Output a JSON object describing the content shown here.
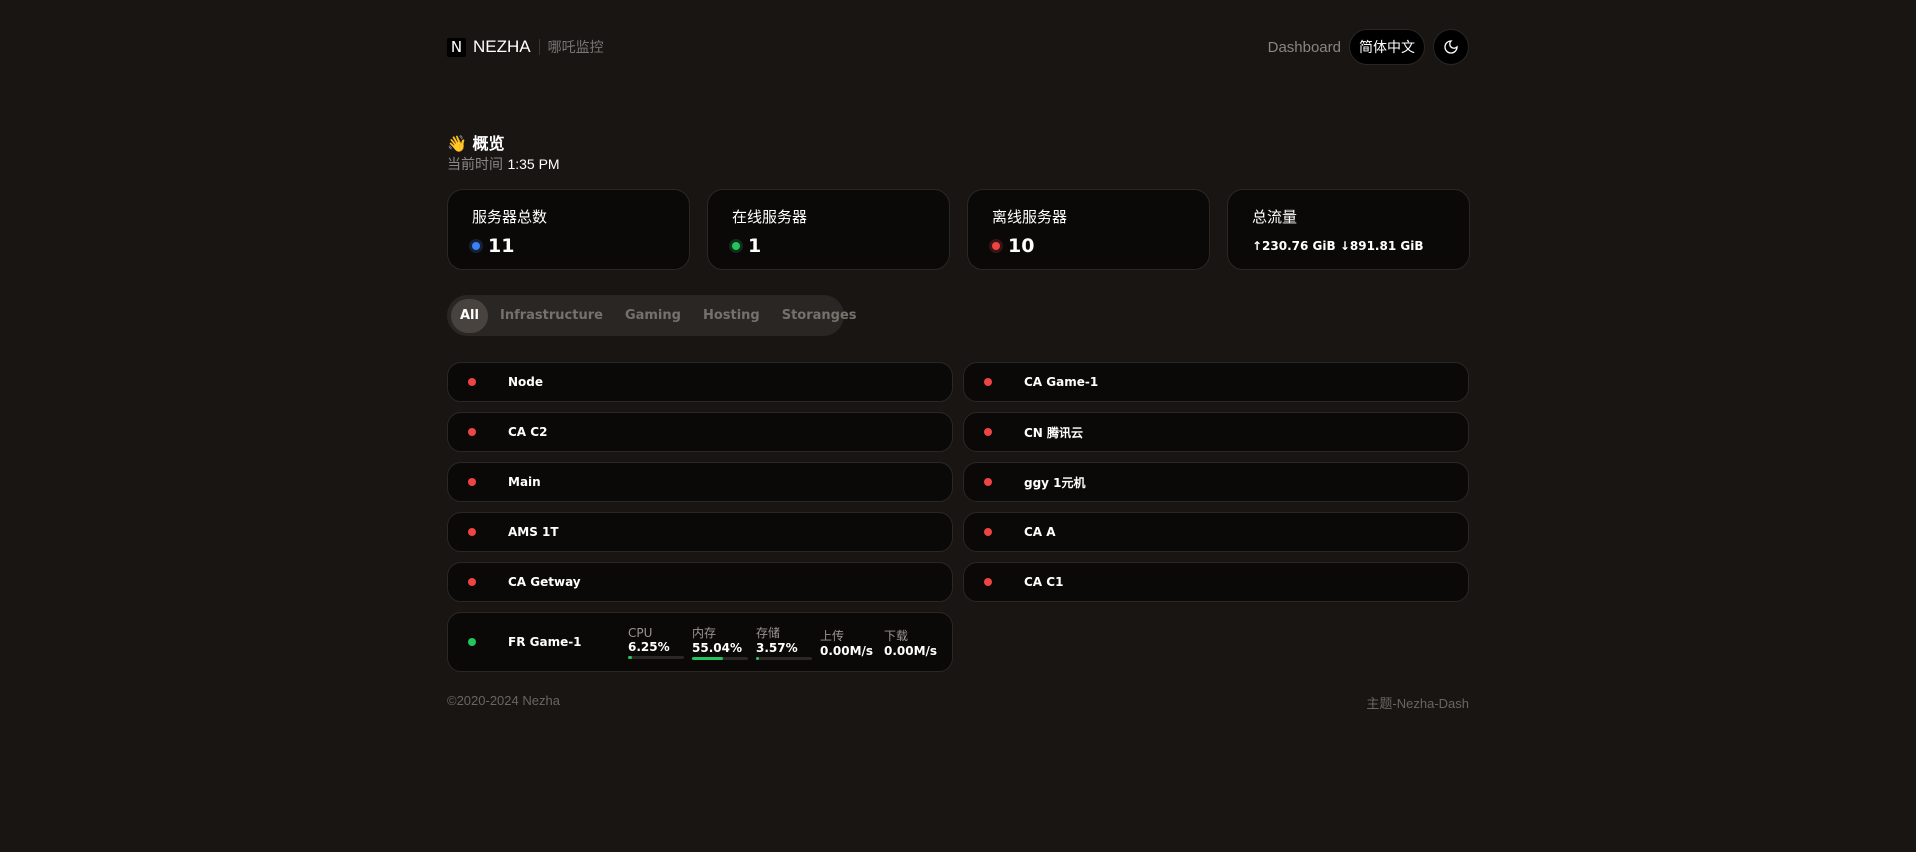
{
  "header": {
    "logo": "N",
    "brand": "NEZHA",
    "subtitle": "哪吒监控",
    "dashboard": "Dashboard",
    "language": "简体中文",
    "theme_icon": "moon-icon"
  },
  "overview": {
    "emoji": "👋",
    "title": "概览",
    "time_label": "当前时间",
    "time": "1:35 PM"
  },
  "cards": [
    {
      "title": "服务器总数",
      "value": "11",
      "color": "#3b82f6"
    },
    {
      "title": "在线服务器",
      "value": "1",
      "color": "#22c55e"
    },
    {
      "title": "离线服务器",
      "value": "10",
      "color": "#ef4444"
    },
    {
      "title": "总流量",
      "traffic": "↑230.76 GiB ↓891.81 GiB"
    }
  ],
  "tabs": [
    {
      "label": "All",
      "active": true
    },
    {
      "label": "Infrastructure"
    },
    {
      "label": "Gaming"
    },
    {
      "label": "Hosting"
    },
    {
      "label": "Storanges"
    }
  ],
  "servers": [
    {
      "name": "Node",
      "online": false
    },
    {
      "name": "CA Game-1",
      "online": false
    },
    {
      "name": "CA C2",
      "online": false
    },
    {
      "name": "CN 腾讯云",
      "online": false
    },
    {
      "name": "Main",
      "online": false
    },
    {
      "name": "ggy 1元机",
      "online": false
    },
    {
      "name": "AMS 1T",
      "online": false
    },
    {
      "name": "CA A",
      "online": false
    },
    {
      "name": "CA Getway",
      "online": false
    },
    {
      "name": "CA C1",
      "online": false
    }
  ],
  "online_server": {
    "name": "FR Game-1",
    "stats": [
      {
        "label": "CPU",
        "value": "6.25%",
        "percent": 6.25
      },
      {
        "label": "内存",
        "value": "55.04%",
        "percent": 55.04
      },
      {
        "label": "存储",
        "value": "3.57%",
        "percent": 3.57
      },
      {
        "label": "上传",
        "value": "0.00M/s"
      },
      {
        "label": "下载",
        "value": "0.00M/s"
      }
    ]
  },
  "colors": {
    "online": "#22c55e",
    "offline": "#ef4444"
  },
  "footer": {
    "copyright": "©2020-2024 Nezha",
    "theme": "主题-Nezha-Dash"
  }
}
